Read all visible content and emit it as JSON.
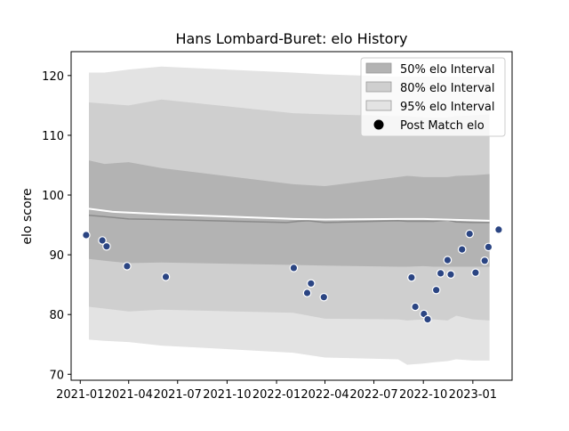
{
  "chart_data": {
    "type": "scatter",
    "title": "Hans Lombard-Buret: elo History",
    "xlabel": "",
    "ylabel": "elo score",
    "xlim": [
      "2020-12-15",
      "2023-03-15"
    ],
    "ylim": [
      69,
      124
    ],
    "x_ticks": [
      "2021-01",
      "2021-04",
      "2021-07",
      "2021-10",
      "2022-01",
      "2022-04",
      "2022-07",
      "2022-10",
      "2023-01"
    ],
    "y_ticks": [
      70,
      80,
      90,
      100,
      110,
      120
    ],
    "grid": false,
    "legend_position": "top-right",
    "legend": [
      {
        "label": "50% elo Interval",
        "kind": "patch",
        "color": "#b3b3b3"
      },
      {
        "label": "80% elo Interval",
        "kind": "patch",
        "color": "#cfcfcf"
      },
      {
        "label": "95% elo Interval",
        "kind": "patch",
        "color": "#e3e3e3"
      },
      {
        "label": "Post Match elo",
        "kind": "marker",
        "color": "#000000"
      }
    ],
    "colors": {
      "band_95": "#e3e3e3",
      "band_80": "#cfcfcf",
      "band_50": "#b3b3b3",
      "mean_line": "#ffffff",
      "median_line": "#8a8a8a",
      "points": "#2b4583"
    },
    "bands": {
      "x": [
        "2021-01-17",
        "2021-02-15",
        "2021-04-01",
        "2021-06-01",
        "2022-02-01",
        "2022-04-01",
        "2022-08-15",
        "2022-09-01",
        "2022-10-01",
        "2022-10-20",
        "2022-11-15",
        "2022-12-01",
        "2023-01-01",
        "2023-02-01"
      ],
      "p95_upper": [
        120.5,
        120.5,
        121.0,
        121.5,
        120.5,
        120.2,
        119.8,
        119.8,
        119.8,
        119.8,
        119.8,
        119.8,
        119.8,
        119.8
      ],
      "p80_upper": [
        115.5,
        115.3,
        115.0,
        116.0,
        113.7,
        113.5,
        113.2,
        113.2,
        113.0,
        113.0,
        113.0,
        113.2,
        113.3,
        113.5
      ],
      "p50_upper": [
        105.8,
        105.2,
        105.5,
        104.5,
        101.8,
        101.5,
        103.0,
        103.2,
        103.0,
        103.0,
        103.0,
        103.2,
        103.3,
        103.5
      ],
      "p50_lower": [
        89.3,
        89.0,
        88.6,
        88.7,
        88.3,
        88.2,
        88.0,
        88.0,
        88.1,
        88.0,
        88.0,
        88.0,
        88.0,
        88.0
      ],
      "p80_lower": [
        81.3,
        81.0,
        80.5,
        80.8,
        80.3,
        79.3,
        79.2,
        79.0,
        79.2,
        79.2,
        79.0,
        79.8,
        79.2,
        79.0
      ],
      "p95_lower": [
        75.8,
        75.6,
        75.4,
        74.8,
        73.6,
        72.8,
        72.5,
        71.6,
        71.8,
        72.0,
        72.2,
        72.5,
        72.3,
        72.3
      ]
    },
    "mean_line": {
      "x": [
        "2021-01-17",
        "2021-03-01",
        "2021-06-01",
        "2022-02-01",
        "2022-04-01",
        "2022-08-15",
        "2022-10-01",
        "2023-02-01"
      ],
      "y": [
        97.7,
        97.2,
        96.8,
        96.0,
        95.9,
        96.0,
        96.0,
        95.7
      ]
    },
    "median_line": {
      "x": [
        "2021-01-17",
        "2021-02-15",
        "2021-04-01",
        "2021-06-01",
        "2022-01-20",
        "2022-02-10",
        "2022-03-01",
        "2022-04-01",
        "2022-08-15",
        "2022-09-01",
        "2022-10-01",
        "2022-10-20",
        "2022-11-15",
        "2022-12-01",
        "2023-01-01",
        "2023-02-01"
      ],
      "y": [
        96.6,
        96.4,
        96.0,
        95.9,
        95.4,
        95.6,
        95.7,
        95.4,
        95.7,
        95.6,
        95.6,
        95.6,
        95.8,
        95.5,
        95.4,
        95.4
      ]
    },
    "points": {
      "x": [
        "2021-01-12",
        "2021-02-11",
        "2021-02-19",
        "2021-03-29",
        "2021-06-09",
        "2022-02-02",
        "2022-02-27",
        "2022-03-06",
        "2022-03-30",
        "2022-09-09",
        "2022-09-16",
        "2022-10-02",
        "2022-10-09",
        "2022-10-25",
        "2022-11-02",
        "2022-11-15",
        "2022-11-21",
        "2022-12-12",
        "2022-12-26",
        "2023-01-06",
        "2023-01-23",
        "2023-01-30",
        "2023-02-18"
      ],
      "y": [
        93.3,
        92.4,
        91.4,
        88.1,
        86.3,
        87.8,
        83.6,
        85.2,
        82.9,
        86.2,
        81.3,
        80.1,
        79.2,
        84.1,
        86.9,
        89.1,
        86.7,
        90.9,
        93.5,
        87.0,
        89.0,
        91.3,
        94.2
      ]
    }
  }
}
